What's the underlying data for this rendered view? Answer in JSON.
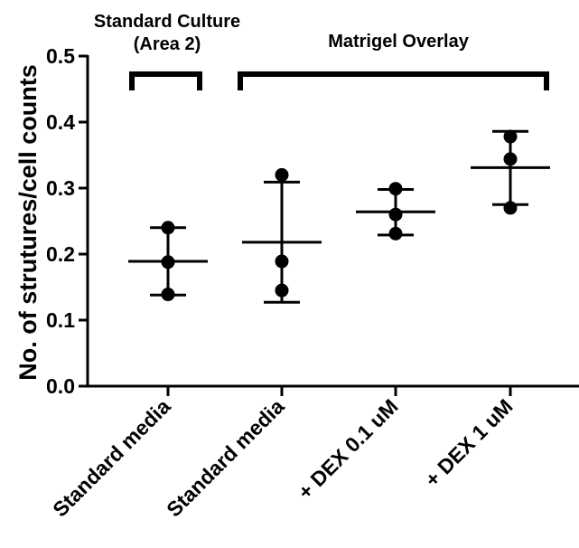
{
  "chart_data": {
    "type": "scatter",
    "title": "",
    "ylabel": "No. of strutures/cell counts",
    "xlabel": "",
    "ylim": [
      0,
      0.5
    ],
    "yticks": [
      0.0,
      0.1,
      0.2,
      0.3,
      0.4,
      0.5
    ],
    "ytick_labels": [
      "0.0",
      "0.1",
      "0.2",
      "0.3",
      "0.4",
      "0.5"
    ],
    "grid": false,
    "legend": "none",
    "point_color": "#000000",
    "categories": [
      "Standard media",
      "Standard media",
      "+ DEX 0.1 uM",
      "+ DEX 1 uM"
    ],
    "groups": [
      {
        "points": [
          0.24,
          0.188,
          0.139
        ],
        "mean": 0.189,
        "sd_low": 0.138,
        "sd_high": 0.24
      },
      {
        "points": [
          0.32,
          0.189,
          0.145
        ],
        "mean": 0.218,
        "sd_low": 0.127,
        "sd_high": 0.309
      },
      {
        "points": [
          0.299,
          0.26,
          0.231
        ],
        "mean": 0.264,
        "sd_low": 0.229,
        "sd_high": 0.298
      },
      {
        "points": [
          0.378,
          0.344,
          0.27
        ],
        "mean": 0.331,
        "sd_low": 0.275,
        "sd_high": 0.386
      }
    ],
    "annotations": [
      {
        "lines": [
          "Standard Culture",
          "(Area 2)"
        ],
        "spans_categories": [
          0,
          0
        ]
      },
      {
        "lines": [
          "Matrigel Overlay"
        ],
        "spans_categories": [
          1,
          3
        ]
      }
    ]
  }
}
